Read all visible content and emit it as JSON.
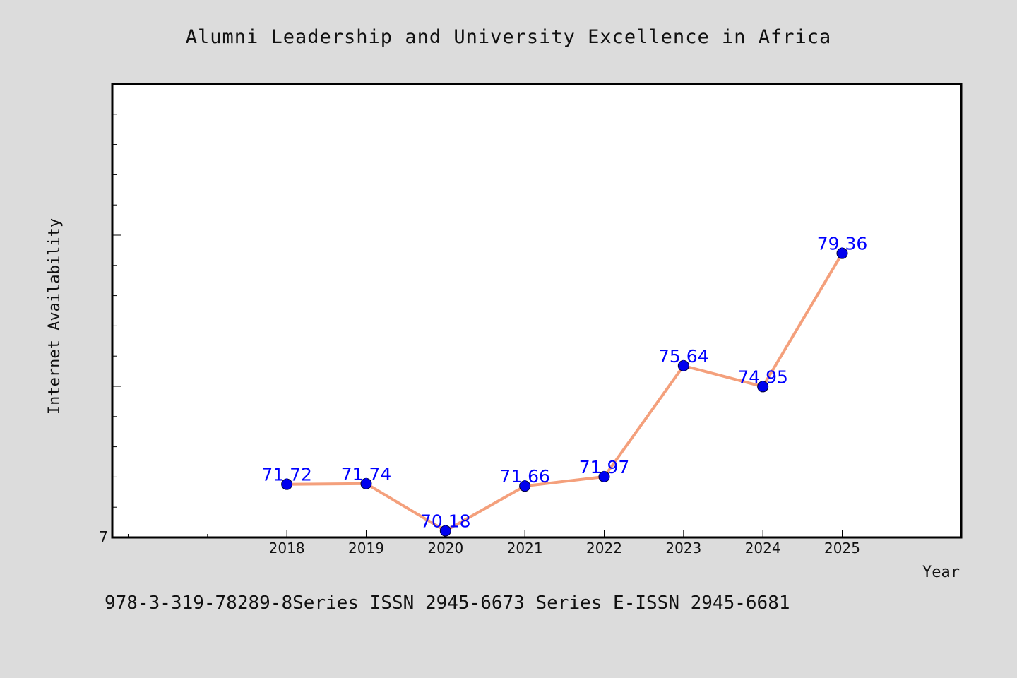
{
  "chart_data": {
    "type": "line",
    "title": "Alumni Leadership and University Excellence in Africa",
    "xlabel": "Year",
    "ylabel": "Internet Availability",
    "x": [
      2018,
      2019,
      2020,
      2021,
      2022,
      2023,
      2024,
      2025
    ],
    "x_tick_labels": [
      "2018",
      "2019",
      "2020",
      "2021",
      "2022",
      "2023",
      "2024",
      "2025"
    ],
    "xlim": [
      2015.8,
      2026.5
    ],
    "y_tick_labels": [
      "7"
    ],
    "ylim": [
      69.96,
      84.96
    ],
    "grid": false,
    "series": [
      {
        "values": [
          71.72,
          71.74,
          70.18,
          71.66,
          71.97,
          75.64,
          74.95,
          79.36
        ],
        "labels": [
          "71.72",
          "71.74",
          "70.18",
          "71.66",
          "71.97",
          "75.64",
          "74.95",
          "79.36"
        ],
        "line_color": "#f4a07c",
        "marker_color": "#0000ee",
        "label_color": "#0000ff"
      }
    ]
  },
  "footer": {
    "text": "978-3-319-78289-8Series ISSN 2945-6673 Series E-ISSN 2945-6681"
  },
  "colors": {
    "background": "#dcdcdc",
    "plot_background": "#ffffff",
    "axis": "#000000"
  }
}
